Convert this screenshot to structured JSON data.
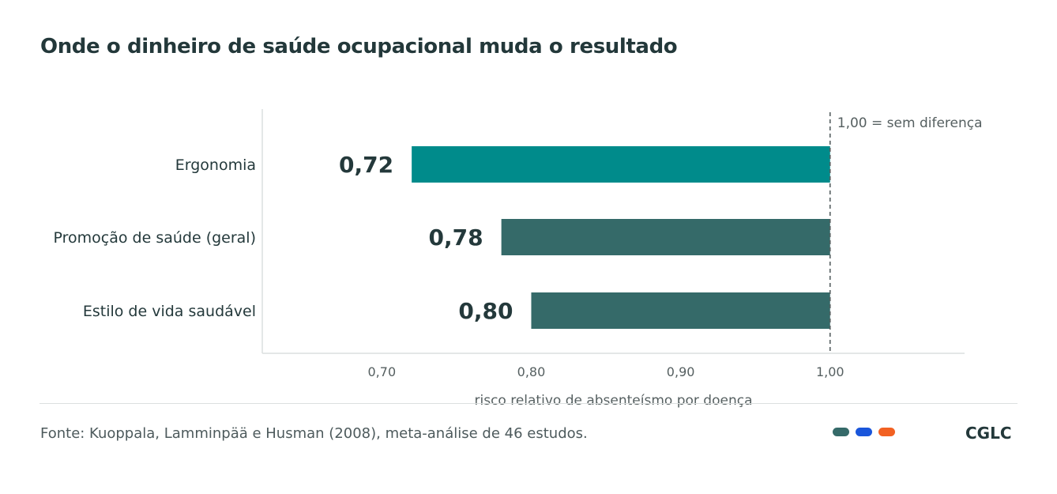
{
  "title": "Onde o dinheiro de saúde ocupacional muda o resultado",
  "source": "Fonte: Kuoppala, Lamminpää e Husman (2008), meta-análise de 46 estudos.",
  "brand": "CGLC",
  "brand_dots": [
    {
      "name": "green",
      "color": "#356a69"
    },
    {
      "name": "blue",
      "color": "#1a56db"
    },
    {
      "name": "orange",
      "color": "#f26122"
    }
  ],
  "chart_data": {
    "type": "bar",
    "orientation": "horizontal",
    "title": "Onde o dinheiro de saúde ocupacional muda o resultado",
    "categories": [
      "Ergonomia",
      "Promoção de saúde (geral)",
      "Estilo de vida saudável"
    ],
    "values": [
      0.72,
      0.78,
      0.8
    ],
    "value_labels": [
      "0,72",
      "0,78",
      "0,80"
    ],
    "bar_colors": [
      "#008b8b",
      "#356a69",
      "#356a69"
    ],
    "baseline": 1.0,
    "reference_line": {
      "value": 1.0,
      "label": "1,00 = sem diferença",
      "style": "dashed"
    },
    "xlim": [
      0.62,
      1.09
    ],
    "xticks": [
      0.7,
      0.8,
      0.9,
      1.0
    ],
    "xtick_labels": [
      "0,70",
      "0,80",
      "0,90",
      "1,00"
    ],
    "xlabel": "risco relativo de absenteísmo por doença",
    "ylabel": "",
    "grid": false,
    "legend": "none"
  }
}
